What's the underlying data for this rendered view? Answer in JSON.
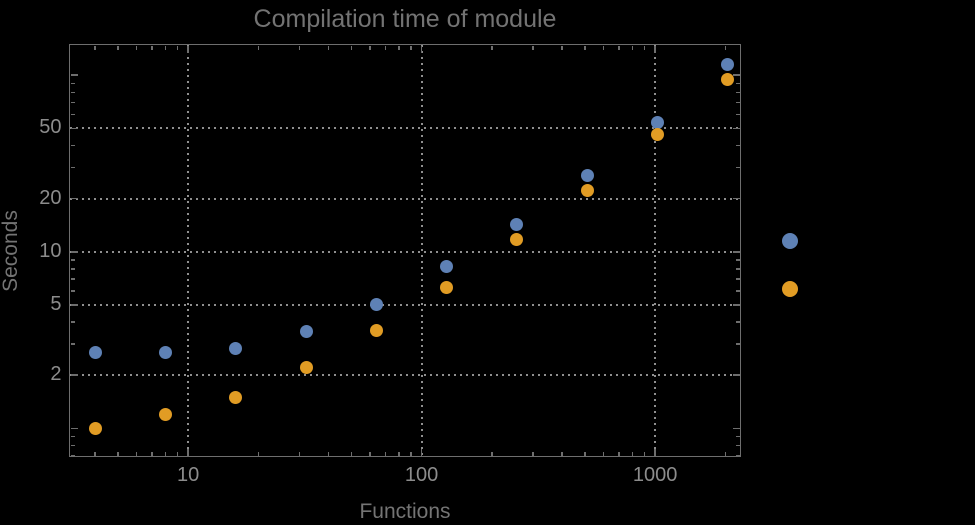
{
  "page": {
    "background": "#000000"
  },
  "header": {
    "title": "Compilation time of module"
  },
  "axes": {
    "x": {
      "label": "Functions",
      "tick_labels": [
        "10",
        "100",
        "1000"
      ]
    },
    "y": {
      "label": "Seconds",
      "tick_labels": [
        "2",
        "5",
        "10",
        "20",
        "50"
      ]
    }
  },
  "legend": {
    "labels_visible": false,
    "items": [
      {
        "marker": "filled-circle",
        "color": "#5e81b5"
      },
      {
        "marker": "filled-circle",
        "color": "#e19c24"
      }
    ]
  },
  "colors": {
    "background": "#000000",
    "title": "#737373",
    "axis_label": "#747474",
    "tick_label": "#8c8c8c",
    "frame": "#6e6e6e",
    "gridline": "#8f8f8f",
    "series_blue": "#5e81b5",
    "series_orange": "#e19c24"
  },
  "chart_data": {
    "type": "scatter",
    "title": "Compilation time of module",
    "xlabel": "Functions",
    "ylabel": "Seconds",
    "x_scale": "log",
    "y_scale": "log",
    "xlim": [
      3.105,
      2333
    ],
    "ylim": [
      0.688,
      149.2
    ],
    "grid": true,
    "grid_style": "dotted",
    "x_gridlines": [
      10,
      100,
      1000
    ],
    "y_gridlines": [
      2,
      5,
      10,
      20,
      50
    ],
    "y_unlabeled_ticks": [
      1,
      100
    ],
    "legend_position": "right-outside",
    "x": [
      4,
      8,
      16,
      32,
      64,
      128,
      256,
      512,
      1024,
      2048
    ],
    "series": [
      {
        "name": "blue-series",
        "color": "#5e81b5",
        "values": [
          2.7,
          2.7,
          2.85,
          3.55,
          5.05,
          8.2,
          14.2,
          27,
          54,
          115
        ]
      },
      {
        "name": "orange-series",
        "color": "#e19c24",
        "values": [
          1.0,
          1.2,
          1.5,
          2.2,
          3.6,
          6.3,
          11.8,
          22.3,
          46,
          95
        ]
      }
    ]
  }
}
